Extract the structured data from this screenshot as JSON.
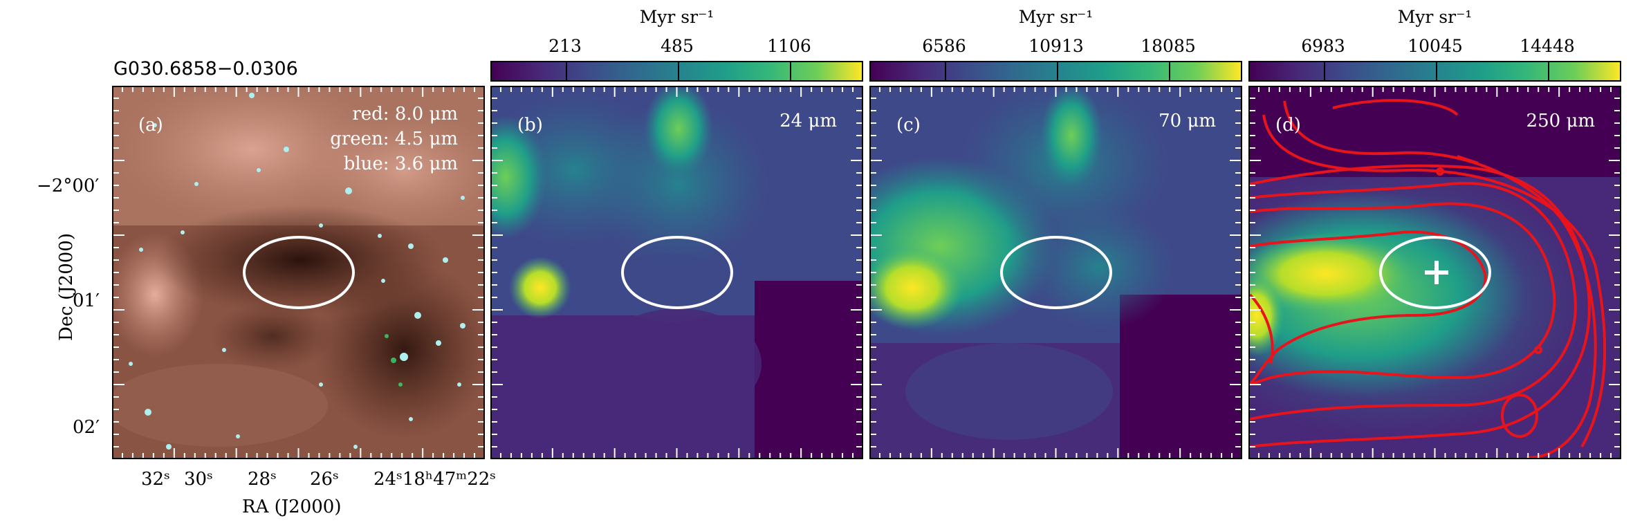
{
  "source_name": "G030.6858−0.0306",
  "colorbar_unit": "Myr sr⁻¹",
  "panels": [
    {
      "label": "(a)",
      "bands": [
        "red: 8.0 μm",
        "green: 4.5 μm",
        "blue: 3.6 μm"
      ]
    },
    {
      "label": "(b)",
      "band": "24 μm",
      "cbar_ticks": [
        "213",
        "485",
        "1106"
      ]
    },
    {
      "label": "(c)",
      "band": "70 μm",
      "cbar_ticks": [
        "6586",
        "10913",
        "18085"
      ]
    },
    {
      "label": "(d)",
      "band": "250 μm",
      "cbar_ticks": [
        "6983",
        "10045",
        "14448"
      ]
    }
  ],
  "axes": {
    "xlabel": "RA (J2000)",
    "ylabel": "Dec (J2000)",
    "xticks": [
      "32ˢ",
      "30ˢ",
      "28ˢ",
      "26ˢ",
      "24ˢ18ʰ47ᵐ22ˢ"
    ],
    "yticks": [
      "−2°00′",
      "01′",
      "02′"
    ]
  },
  "colors": {
    "viridis_low": "#440154",
    "viridis_high": "#fde725",
    "contour": "#e8141c",
    "marker": "#ffffff"
  }
}
